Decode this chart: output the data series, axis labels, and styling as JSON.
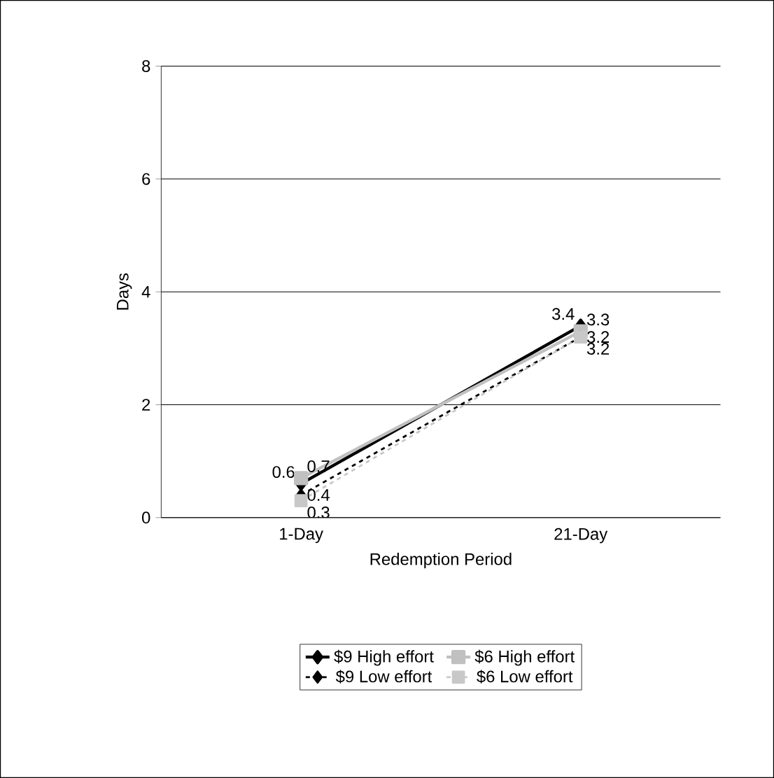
{
  "chart_data": {
    "type": "line",
    "xlabel": "Redemption Period",
    "ylabel": "Days",
    "categories": [
      "1-Day",
      "21-Day"
    ],
    "ylim": [
      0,
      8
    ],
    "yticks": [
      0,
      2,
      4,
      6,
      8
    ],
    "grid": "y",
    "legend": "bottom",
    "data_labels": true,
    "series": [
      {
        "name": "$9 High effort",
        "color": "#000000",
        "marker": "diamond",
        "line_style": "solid",
        "values": [
          0.6,
          3.4
        ]
      },
      {
        "name": "$6 High effort",
        "color": "#c0c0c0",
        "marker": "square",
        "line_style": "solid",
        "values": [
          0.7,
          3.3
        ]
      },
      {
        "name": "$9 Low effort",
        "color": "#000000",
        "marker": "diamond",
        "line_style": "dashed",
        "values": [
          0.4,
          3.2
        ]
      },
      {
        "name": "$6 Low effort",
        "color": "#c8c8c8",
        "marker": "square",
        "line_style": "dashed",
        "values": [
          0.3,
          3.2
        ]
      }
    ]
  }
}
